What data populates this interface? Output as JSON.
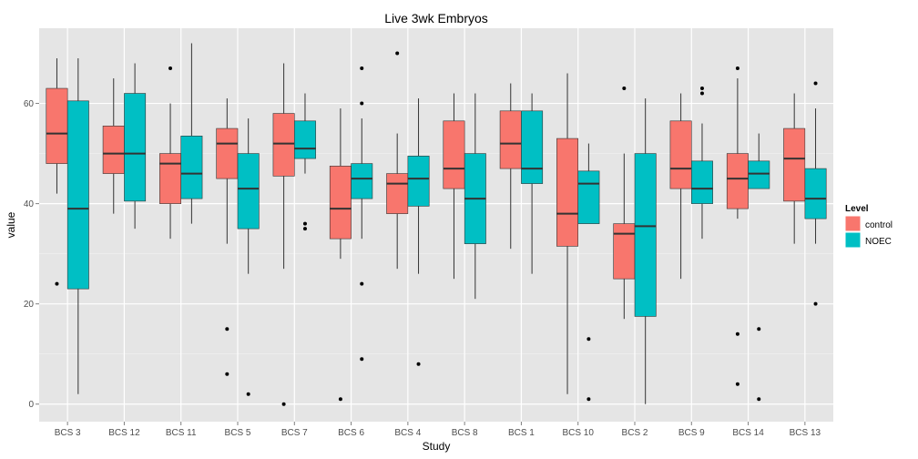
{
  "chart_data": {
    "type": "boxplot",
    "title": "Live 3wk Embryos",
    "xlabel": "Study",
    "ylabel": "value",
    "ylim": [
      -3.5,
      75
    ],
    "y_ticks": [
      0,
      20,
      40,
      60
    ],
    "grid": true,
    "legend": {
      "title": "Level",
      "position": "right",
      "entries": [
        "control",
        "NOEC"
      ]
    },
    "colors": {
      "control": "#F8766D",
      "NOEC": "#00BFC4",
      "panel": "#E5E5E5",
      "grid": "#FFFFFF"
    },
    "categories": [
      "BCS 3",
      "BCS 12",
      "BCS 11",
      "BCS 5",
      "BCS 7",
      "BCS 6",
      "BCS 4",
      "BCS 8",
      "BCS 1",
      "BCS 10",
      "BCS 2",
      "BCS 9",
      "BCS 14",
      "BCS 13"
    ],
    "series": [
      {
        "name": "control",
        "boxes": [
          {
            "lower": 42,
            "q1": 48,
            "median": 54,
            "q3": 63,
            "upper": 69,
            "outliers": [
              24
            ]
          },
          {
            "lower": 38,
            "q1": 46,
            "median": 50,
            "q3": 55.5,
            "upper": 65,
            "outliers": []
          },
          {
            "lower": 33,
            "q1": 40,
            "median": 48,
            "q3": 50,
            "upper": 60,
            "outliers": [
              67
            ]
          },
          {
            "lower": 32,
            "q1": 45,
            "median": 52,
            "q3": 55,
            "upper": 61,
            "outliers": [
              15,
              6
            ]
          },
          {
            "lower": 27,
            "q1": 45.5,
            "median": 52,
            "q3": 58,
            "upper": 68,
            "outliers": [
              0
            ]
          },
          {
            "lower": 29,
            "q1": 33,
            "median": 39,
            "q3": 47.5,
            "upper": 59,
            "outliers": [
              1
            ]
          },
          {
            "lower": 27,
            "q1": 38,
            "median": 44,
            "q3": 46,
            "upper": 54,
            "outliers": [
              70
            ]
          },
          {
            "lower": 25,
            "q1": 43,
            "median": 47,
            "q3": 56.5,
            "upper": 62,
            "outliers": []
          },
          {
            "lower": 31,
            "q1": 47,
            "median": 52,
            "q3": 58.5,
            "upper": 64,
            "outliers": []
          },
          {
            "lower": 2,
            "q1": 31.5,
            "median": 38,
            "q3": 53,
            "upper": 66,
            "outliers": []
          },
          {
            "lower": 17,
            "q1": 25,
            "median": 34,
            "q3": 36,
            "upper": 50,
            "outliers": [
              63
            ]
          },
          {
            "lower": 25,
            "q1": 43,
            "median": 47,
            "q3": 56.5,
            "upper": 62,
            "outliers": []
          },
          {
            "lower": 37,
            "q1": 39,
            "median": 45,
            "q3": 50,
            "upper": 65,
            "outliers": [
              67,
              14,
              4
            ]
          },
          {
            "lower": 32,
            "q1": 40.5,
            "median": 49,
            "q3": 55,
            "upper": 62,
            "outliers": []
          }
        ]
      },
      {
        "name": "NOEC",
        "boxes": [
          {
            "lower": 2,
            "q1": 23,
            "median": 39,
            "q3": 60.5,
            "upper": 69,
            "outliers": []
          },
          {
            "lower": 35,
            "q1": 40.5,
            "median": 50,
            "q3": 62,
            "upper": 68,
            "outliers": []
          },
          {
            "lower": 36,
            "q1": 41,
            "median": 46,
            "q3": 53.5,
            "upper": 72,
            "outliers": []
          },
          {
            "lower": 26,
            "q1": 35,
            "median": 43,
            "q3": 50,
            "upper": 57,
            "outliers": [
              2
            ]
          },
          {
            "lower": 46,
            "q1": 49,
            "median": 51,
            "q3": 56.5,
            "upper": 62,
            "outliers": [
              36,
              35
            ]
          },
          {
            "lower": 33,
            "q1": 41,
            "median": 45,
            "q3": 48,
            "upper": 57,
            "outliers": [
              67,
              60,
              24,
              9
            ]
          },
          {
            "lower": 26,
            "q1": 39.5,
            "median": 45,
            "q3": 49.5,
            "upper": 61,
            "outliers": [
              8
            ]
          },
          {
            "lower": 21,
            "q1": 32,
            "median": 41,
            "q3": 50,
            "upper": 62,
            "outliers": []
          },
          {
            "lower": 26,
            "q1": 44,
            "median": 47,
            "q3": 58.5,
            "upper": 62,
            "outliers": []
          },
          {
            "lower": 36,
            "q1": 36,
            "median": 44,
            "q3": 46.5,
            "upper": 52,
            "outliers": [
              13,
              1
            ]
          },
          {
            "lower": 0,
            "q1": 17.5,
            "median": 35.5,
            "q3": 50,
            "upper": 61,
            "outliers": []
          },
          {
            "lower": 33,
            "q1": 40,
            "median": 43,
            "q3": 48.5,
            "upper": 56,
            "outliers": [
              63,
              62
            ]
          },
          {
            "lower": 43,
            "q1": 43,
            "median": 46,
            "q3": 48.5,
            "upper": 54,
            "outliers": [
              15,
              1
            ]
          },
          {
            "lower": 32,
            "q1": 37,
            "median": 41,
            "q3": 47,
            "upper": 59,
            "outliers": [
              64,
              20
            ]
          }
        ]
      }
    ]
  }
}
